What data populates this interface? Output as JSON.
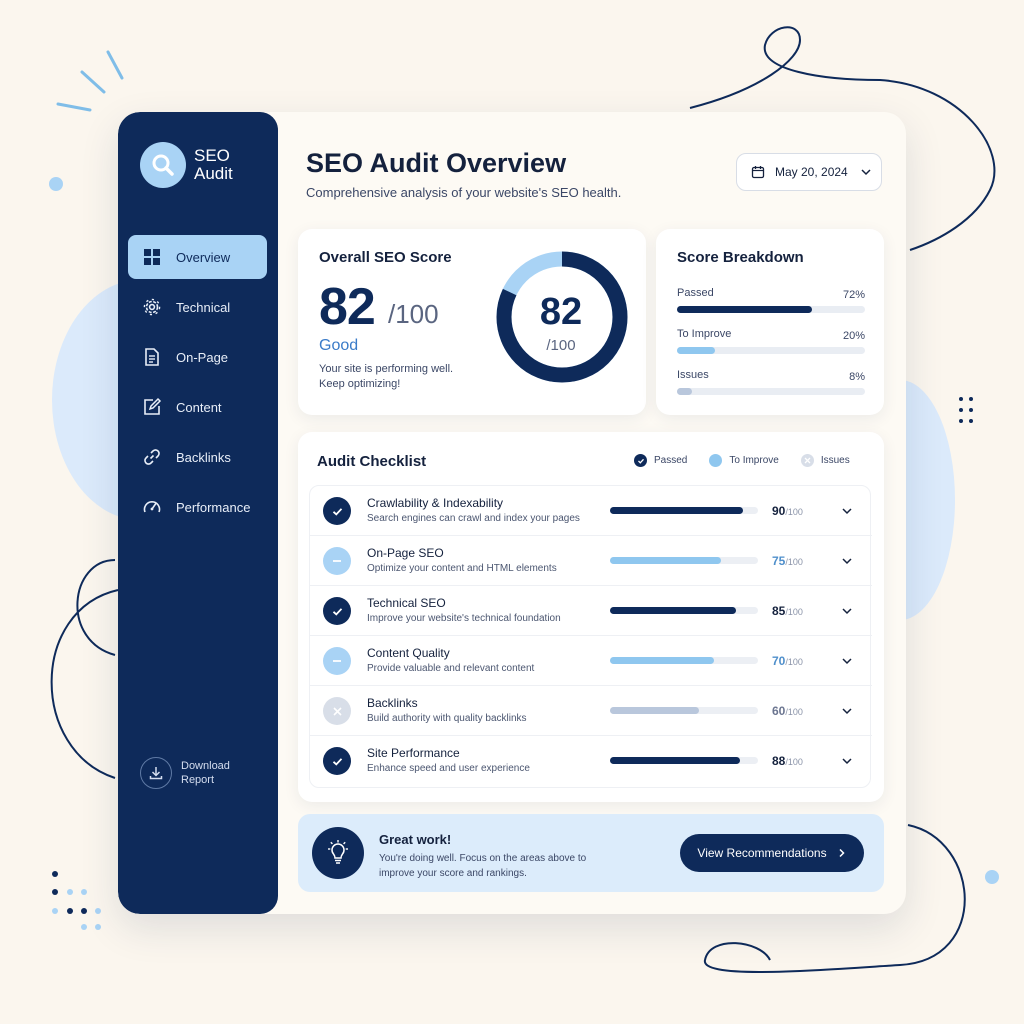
{
  "app": {
    "logo_line1": "SEO",
    "logo_line2": "Audit"
  },
  "colors": {
    "navy": "#0e2a5a",
    "light_blue": "#a9d3f5",
    "grey_blue": "#b9c7dc",
    "background": "#fbf6ee"
  },
  "sidebar": {
    "items": [
      {
        "label": "Overview",
        "icon": "grid-icon",
        "active": true
      },
      {
        "label": "Technical",
        "icon": "gear-icon",
        "active": false
      },
      {
        "label": "On-Page",
        "icon": "document-icon",
        "active": false
      },
      {
        "label": "Content",
        "icon": "edit-icon",
        "active": false
      },
      {
        "label": "Backlinks",
        "icon": "link-icon",
        "active": false
      },
      {
        "label": "Performance",
        "icon": "gauge-icon",
        "active": false
      }
    ],
    "download_line1": "Download",
    "download_line2": "Report"
  },
  "header": {
    "title": "SEO Audit Overview",
    "subtitle": "Comprehensive analysis of your website's SEO health.",
    "date": "May 20, 2024"
  },
  "score": {
    "title": "Overall SEO Score",
    "value": "82",
    "out_of": "/100",
    "status": "Good",
    "description": "Your site is performing well. Keep optimizing!",
    "fraction": 0.82
  },
  "breakdown": {
    "title": "Score Breakdown",
    "items": [
      {
        "label": "Passed",
        "value": "72%",
        "fraction": 0.72
      },
      {
        "label": "To Improve",
        "value": "20%",
        "fraction": 0.2
      },
      {
        "label": "Issues",
        "value": "8%",
        "fraction": 0.08
      }
    ]
  },
  "checklist": {
    "title": "Audit Checklist",
    "legend": [
      {
        "label": "Passed",
        "status": "passed"
      },
      {
        "label": "To Improve",
        "status": "improve"
      },
      {
        "label": "Issues",
        "status": "issue"
      }
    ],
    "items": [
      {
        "name": "Crawlability & Indexability",
        "description": "Search engines can crawl and index your pages",
        "score": "90",
        "out_of": "/100",
        "status": "passed",
        "fraction": 0.9
      },
      {
        "name": "On-Page SEO",
        "description": "Optimize your content and HTML elements",
        "score": "75",
        "out_of": "/100",
        "status": "improve",
        "fraction": 0.75
      },
      {
        "name": "Technical SEO",
        "description": "Improve your website's technical foundation",
        "score": "85",
        "out_of": "/100",
        "status": "passed",
        "fraction": 0.85
      },
      {
        "name": "Content Quality",
        "description": "Provide valuable and relevant content",
        "score": "70",
        "out_of": "/100",
        "status": "improve",
        "fraction": 0.7
      },
      {
        "name": "Backlinks",
        "description": "Build authority with quality backlinks",
        "score": "60",
        "out_of": "/100",
        "status": "issue",
        "fraction": 0.6
      },
      {
        "name": "Site Performance",
        "description": "Enhance speed and user experience",
        "score": "88",
        "out_of": "/100",
        "status": "passed",
        "fraction": 0.88
      }
    ]
  },
  "banner": {
    "title": "Great work!",
    "text": "You're doing well. Focus on the areas above to improve your score and rankings.",
    "button_label": "View Recommendations",
    "icon": "lightbulb-icon"
  }
}
